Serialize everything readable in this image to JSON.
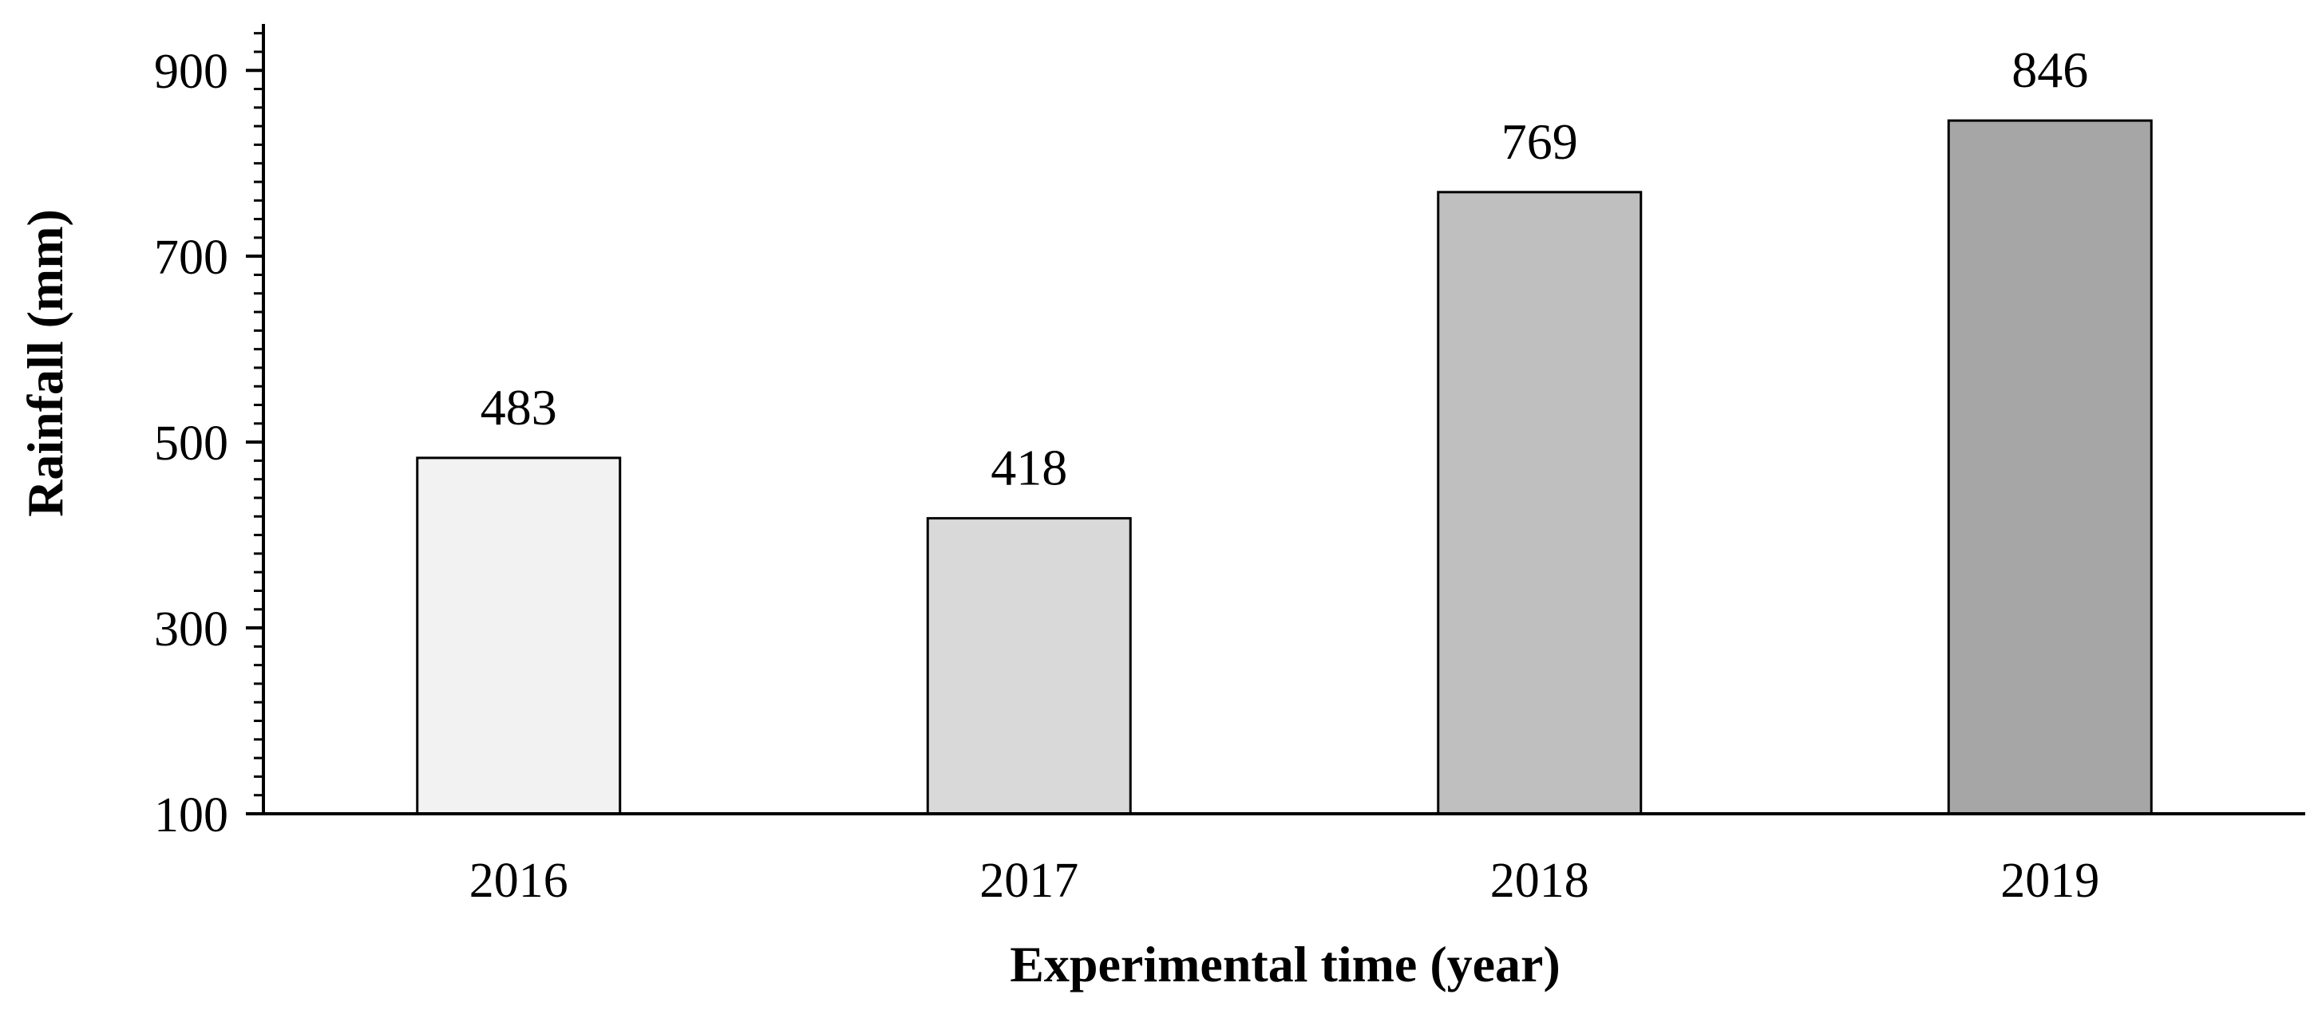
{
  "chart_data": {
    "type": "bar",
    "categories": [
      "2016",
      "2017",
      "2018",
      "2019"
    ],
    "values": [
      483,
      418,
      769,
      846
    ],
    "data_labels": [
      "483",
      "418",
      "769",
      "846"
    ],
    "xlabel": "Experimental time (year)",
    "ylabel": "Rainfall (mm)",
    "ylim": [
      100,
      950
    ],
    "yticks": [
      100,
      300,
      500,
      700,
      900
    ],
    "ytick_labels": [
      "100",
      "300",
      "500",
      "700",
      "900"
    ],
    "minor_tick_step": 20,
    "grid": false,
    "legend": "none",
    "bar_colors": [
      "#f2f2f2",
      "#d9d9d9",
      "#bfbfbf",
      "#a6a6a6"
    ],
    "bar_edge_color": "#000000"
  }
}
